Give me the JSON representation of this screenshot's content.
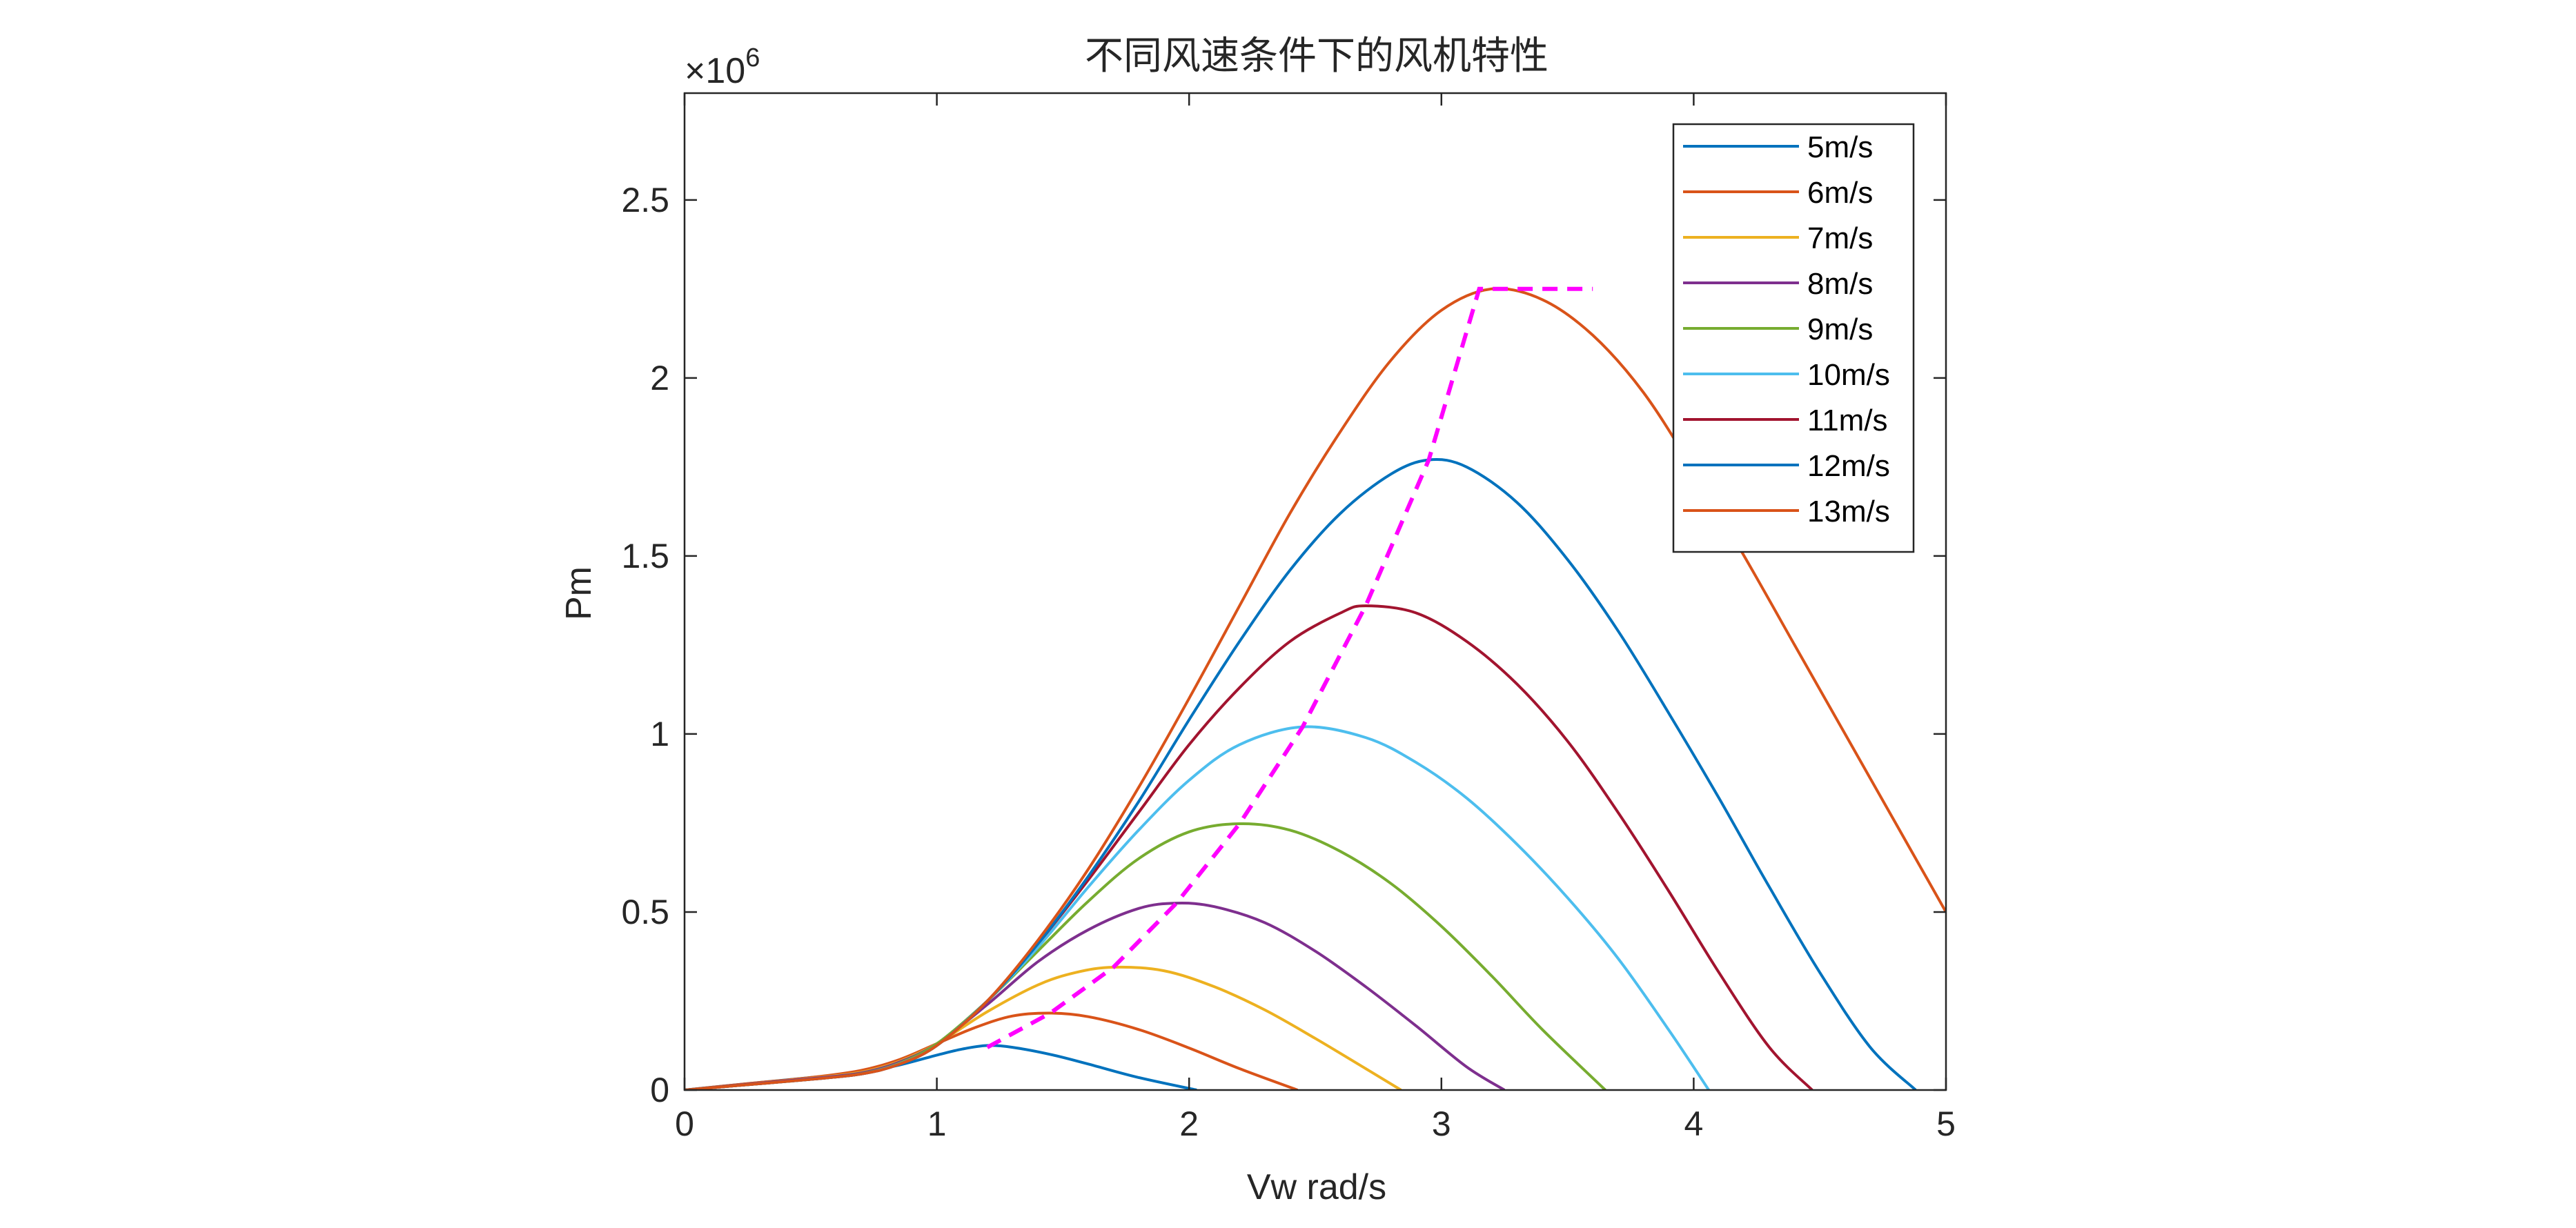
{
  "chart_data": {
    "type": "line",
    "title": "不同风速条件下的风机特性",
    "xlabel": "Vw rad/s",
    "ylabel": "Pm",
    "exponent_label": "×10",
    "exponent_power": "6",
    "xlim": [
      0,
      5
    ],
    "ylim": [
      0,
      2.8
    ],
    "xticks": [
      0,
      1,
      2,
      3,
      4,
      5
    ],
    "xtick_labels": [
      "0",
      "1",
      "2",
      "3",
      "4",
      "5"
    ],
    "yticks": [
      0,
      0.5,
      1,
      1.5,
      2,
      2.5
    ],
    "ytick_labels": [
      "0",
      "0.5",
      "1",
      "1.5",
      "2",
      "2.5"
    ],
    "grid": false,
    "legend_position": "top-right",
    "series": [
      {
        "name": "5m/s",
        "color": "#0072BD",
        "v": 5,
        "x": [
          0,
          0.25,
          0.5,
          0.7,
          0.85,
          1.0,
          1.1,
          1.2,
          1.3,
          1.45,
          1.6,
          1.8,
          2.03
        ],
        "y": [
          0,
          0.018,
          0.035,
          0.05,
          0.07,
          0.098,
          0.115,
          0.125,
          0.12,
          0.1,
          0.073,
          0.035,
          0
        ]
      },
      {
        "name": "6m/s",
        "color": "#D95319",
        "v": 6,
        "x": [
          0,
          0.25,
          0.5,
          0.7,
          0.85,
          1.0,
          1.15,
          1.3,
          1.45,
          1.6,
          1.8,
          2.0,
          2.2,
          2.43
        ],
        "y": [
          0,
          0.018,
          0.035,
          0.055,
          0.085,
          0.13,
          0.175,
          0.208,
          0.216,
          0.206,
          0.17,
          0.118,
          0.06,
          0
        ]
      },
      {
        "name": "7m/s",
        "color": "#EDB120",
        "v": 7,
        "x": [
          0,
          0.25,
          0.5,
          0.7,
          0.85,
          1.0,
          1.2,
          1.4,
          1.55,
          1.7,
          1.9,
          2.1,
          2.3,
          2.5,
          2.7,
          2.84
        ],
        "y": [
          0,
          0.016,
          0.033,
          0.05,
          0.08,
          0.13,
          0.22,
          0.295,
          0.33,
          0.345,
          0.335,
          0.29,
          0.225,
          0.145,
          0.06,
          0
        ]
      },
      {
        "name": "8m/s",
        "color": "#7E2F8E",
        "v": 8,
        "x": [
          0,
          0.25,
          0.5,
          0.7,
          0.85,
          1.0,
          1.2,
          1.4,
          1.6,
          1.8,
          1.95,
          2.1,
          2.3,
          2.5,
          2.7,
          2.9,
          3.1,
          3.25
        ],
        "y": [
          0,
          0.016,
          0.032,
          0.048,
          0.078,
          0.13,
          0.24,
          0.36,
          0.45,
          0.51,
          0.525,
          0.515,
          0.47,
          0.39,
          0.29,
          0.18,
          0.065,
          0
        ]
      },
      {
        "name": "9m/s",
        "color": "#77AC30",
        "v": 9,
        "x": [
          0,
          0.25,
          0.5,
          0.7,
          0.85,
          1.0,
          1.2,
          1.4,
          1.6,
          1.8,
          2.0,
          2.2,
          2.4,
          2.6,
          2.8,
          3.0,
          3.2,
          3.4,
          3.65
        ],
        "y": [
          0,
          0.015,
          0.03,
          0.046,
          0.075,
          0.13,
          0.25,
          0.39,
          0.53,
          0.65,
          0.725,
          0.748,
          0.73,
          0.67,
          0.58,
          0.46,
          0.32,
          0.17,
          0
        ]
      },
      {
        "name": "10m/s",
        "color": "#4DBEEE",
        "v": 10,
        "x": [
          0,
          0.25,
          0.5,
          0.7,
          0.85,
          1.0,
          1.2,
          1.4,
          1.6,
          1.8,
          2.0,
          2.2,
          2.45,
          2.7,
          2.9,
          3.1,
          3.3,
          3.5,
          3.7,
          3.9,
          4.06
        ],
        "y": [
          0,
          0.015,
          0.03,
          0.045,
          0.073,
          0.125,
          0.25,
          0.4,
          0.57,
          0.73,
          0.87,
          0.97,
          1.02,
          0.99,
          0.92,
          0.82,
          0.69,
          0.54,
          0.37,
          0.17,
          0
        ]
      },
      {
        "name": "11m/s",
        "color": "#A2142F",
        "v": 11,
        "x": [
          0,
          0.25,
          0.5,
          0.7,
          0.85,
          1.0,
          1.2,
          1.4,
          1.6,
          1.8,
          2.0,
          2.2,
          2.4,
          2.6,
          2.7,
          2.9,
          3.1,
          3.3,
          3.5,
          3.7,
          3.9,
          4.1,
          4.3,
          4.47
        ],
        "y": [
          0,
          0.015,
          0.03,
          0.045,
          0.072,
          0.125,
          0.25,
          0.41,
          0.59,
          0.78,
          0.97,
          1.13,
          1.26,
          1.34,
          1.36,
          1.34,
          1.26,
          1.14,
          0.98,
          0.78,
          0.56,
          0.33,
          0.12,
          0
        ]
      },
      {
        "name": "12m/s",
        "color": "#0072BD",
        "v": 12,
        "x": [
          0,
          0.25,
          0.5,
          0.7,
          0.85,
          1.0,
          1.2,
          1.4,
          1.6,
          1.8,
          2.0,
          2.2,
          2.4,
          2.6,
          2.8,
          2.95,
          3.1,
          3.3,
          3.5,
          3.7,
          3.9,
          4.1,
          4.3,
          4.5,
          4.7,
          4.88
        ],
        "y": [
          0,
          0.015,
          0.03,
          0.045,
          0.072,
          0.125,
          0.25,
          0.41,
          0.6,
          0.81,
          1.04,
          1.26,
          1.46,
          1.62,
          1.73,
          1.77,
          1.75,
          1.65,
          1.49,
          1.29,
          1.06,
          0.82,
          0.57,
          0.33,
          0.12,
          0
        ]
      },
      {
        "name": "13m/s",
        "color": "#D95319",
        "v": 13,
        "x": [
          0,
          0.25,
          0.5,
          0.7,
          0.85,
          1.0,
          1.2,
          1.4,
          1.6,
          1.8,
          2.0,
          2.2,
          2.4,
          2.6,
          2.8,
          3.0,
          3.2,
          3.4,
          3.6,
          3.8,
          4.0,
          4.2,
          4.4,
          4.6,
          4.8,
          5.0
        ],
        "y": [
          0,
          0.015,
          0.03,
          0.045,
          0.072,
          0.125,
          0.25,
          0.42,
          0.62,
          0.85,
          1.1,
          1.36,
          1.62,
          1.85,
          2.05,
          2.19,
          2.25,
          2.22,
          2.12,
          1.96,
          1.74,
          1.5,
          1.25,
          1.0,
          0.75,
          0.5
        ]
      }
    ],
    "mppt_curve": {
      "color": "#FF00FF",
      "style": "dashed",
      "x": [
        1.2,
        1.45,
        1.7,
        1.95,
        2.2,
        2.45,
        2.7,
        2.95,
        3.15,
        3.6
      ],
      "y": [
        0.12,
        0.216,
        0.345,
        0.525,
        0.748,
        1.02,
        1.36,
        1.77,
        2.25,
        2.25
      ]
    }
  }
}
